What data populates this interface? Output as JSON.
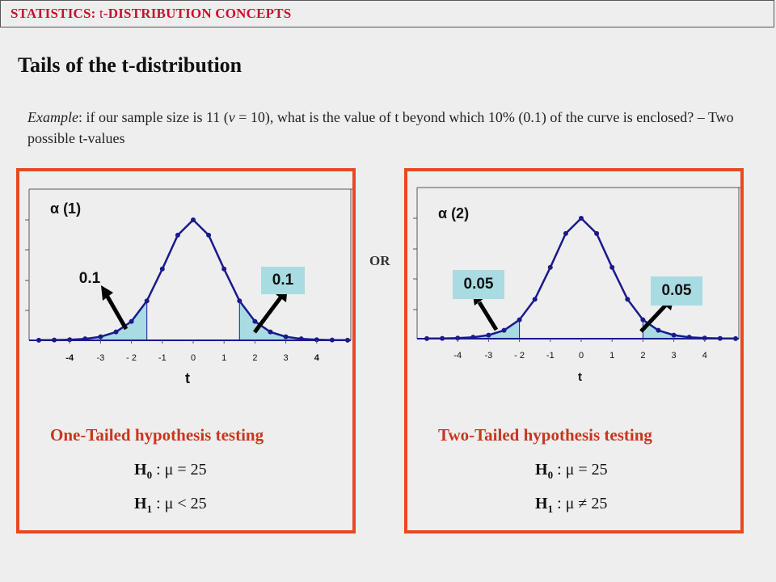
{
  "header": {
    "prefix": "STATISTICS: ",
    "t": "t",
    "suffix": "-DISTRIBUTION CONCEPTS"
  },
  "title": "Tails of the t-distribution",
  "example": {
    "label": "Example",
    "text1": ": if our sample size is 11 (",
    "nu": "v",
    "text2": " = 10), what is the value of t beyond which 10% (0.1) of the curve is enclosed? – Two possible t-values"
  },
  "or_label": "OR",
  "left": {
    "alpha_label": "α (1)",
    "left_tail_label": "0.1",
    "right_tail_label": "0.1",
    "x_title": "t",
    "x_ticks": [
      "-4",
      "-3",
      "- 2",
      "-1",
      "0",
      "1",
      "2",
      "3",
      "4"
    ],
    "test_title": "One-Tailed hypothesis testing",
    "h0": {
      "h": "H",
      "sub": "0",
      "rest": " : μ = 25"
    },
    "h1": {
      "h": "H",
      "sub": "1",
      "rest": " : μ < 25"
    }
  },
  "right": {
    "alpha_label": "α (2)",
    "left_tail_label": "0.05",
    "right_tail_label": "0.05",
    "x_title": "t",
    "x_ticks": [
      "-4",
      "-3",
      "- 2",
      "-1",
      "0",
      "1",
      "2",
      "3",
      "4"
    ],
    "test_title": "Two-Tailed hypothesis testing",
    "h0": {
      "h": "H",
      "sub": "0",
      "rest": " : μ = 25"
    },
    "h1": {
      "h": "H",
      "sub": "1",
      "rest": " : μ ≠ 25"
    }
  },
  "colors": {
    "curve": "#1a1a8c",
    "shade": "#a9dbe3",
    "border": "#e84a1e",
    "title_red": "#c8361e"
  }
}
